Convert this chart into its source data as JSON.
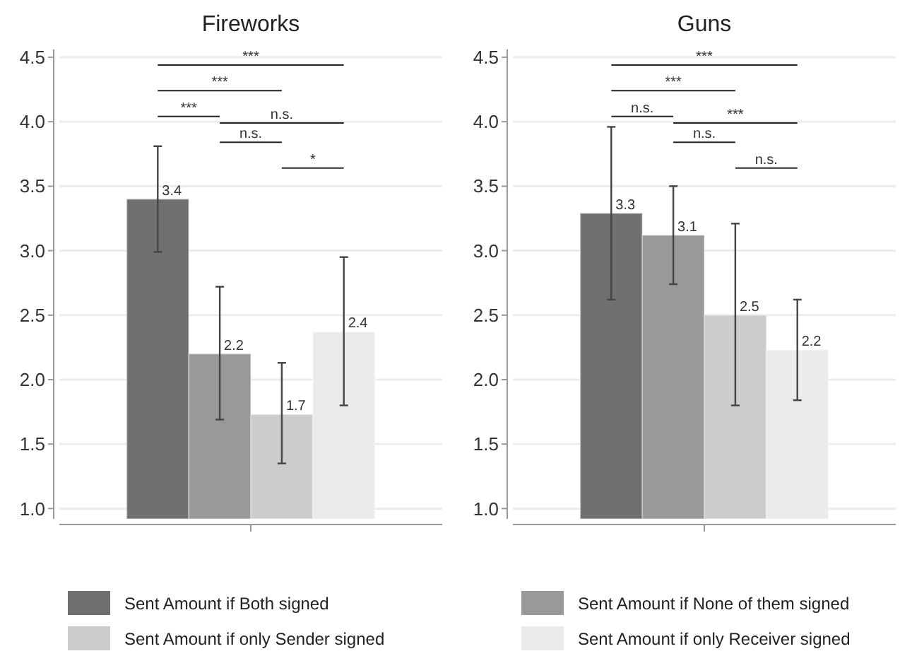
{
  "chart_data": [
    {
      "type": "bar",
      "title": "Fireworks",
      "categories": [
        null
      ],
      "ylim": [
        0.92,
        4.56
      ],
      "yticks": [
        {
          "value": 1,
          "label": "1.0"
        },
        {
          "value": 1.5,
          "label": "1.5"
        },
        {
          "value": 2,
          "label": "2.0"
        },
        {
          "value": 2.5,
          "label": "2.5"
        },
        {
          "value": 3,
          "label": "3.0"
        },
        {
          "value": 3.5,
          "label": "3.5"
        },
        {
          "value": 4,
          "label": "4.0"
        },
        {
          "value": 4.5,
          "label": "4.5"
        }
      ],
      "grid": "y",
      "legend": "bottom",
      "series": [
        {
          "name": "Sent Amount if Both signed",
          "color": "#707070",
          "values": [
            3.4
          ],
          "errors": [
            [
              2.99,
              3.81
            ]
          ],
          "value_labels": [
            "3.4"
          ]
        },
        {
          "name": "Sent Amount if None of them signed",
          "color": "#999999",
          "values": [
            2.2
          ],
          "errors": [
            [
              1.69,
              2.72
            ]
          ],
          "value_labels": [
            "2.2"
          ]
        },
        {
          "name": "Sent Amount if only Sender signed",
          "color": "#cccccc",
          "values": [
            1.73
          ],
          "errors": [
            [
              1.35,
              2.13
            ]
          ],
          "value_labels": [
            "1.7"
          ]
        },
        {
          "name": "Sent Amount if only Receiver signed",
          "color": "#ebebeb",
          "values": [
            2.37
          ],
          "errors": [
            [
              1.8,
              2.95
            ]
          ],
          "value_labels": [
            "2.4"
          ]
        }
      ],
      "annotations": [
        "***",
        "***",
        "***",
        "n.s.",
        "n.s.",
        "*"
      ]
    },
    {
      "type": "bar",
      "title": "Guns",
      "categories": [
        null
      ],
      "ylim": [
        0.92,
        4.56
      ],
      "yticks": [
        {
          "value": 1,
          "label": "1.0"
        },
        {
          "value": 1.5,
          "label": "1.5"
        },
        {
          "value": 2,
          "label": "2.0"
        },
        {
          "value": 2.5,
          "label": "2.5"
        },
        {
          "value": 3,
          "label": "3.0"
        },
        {
          "value": 3.5,
          "label": "3.5"
        },
        {
          "value": 4,
          "label": "4.0"
        },
        {
          "value": 4.5,
          "label": "4.5"
        }
      ],
      "grid": "y",
      "series": [
        {
          "color": "#707070",
          "values": [
            3.29
          ],
          "errors": [
            [
              2.62,
              3.96
            ]
          ],
          "value_labels": [
            "3.3"
          ]
        },
        {
          "color": "#999999",
          "values": [
            3.12
          ],
          "errors": [
            [
              2.74,
              3.5
            ]
          ],
          "value_labels": [
            "3.1"
          ]
        },
        {
          "color": "#cccccc",
          "values": [
            2.5
          ],
          "errors": [
            [
              1.8,
              3.21
            ]
          ],
          "value_labels": [
            "2.5"
          ]
        },
        {
          "color": "#ebebeb",
          "values": [
            2.23
          ],
          "errors": [
            [
              1.84,
              2.62
            ]
          ],
          "value_labels": [
            "2.2"
          ]
        }
      ],
      "annotations": [
        "***",
        "***",
        "n.s.",
        "***",
        "n.s.",
        "n.s."
      ]
    }
  ]
}
